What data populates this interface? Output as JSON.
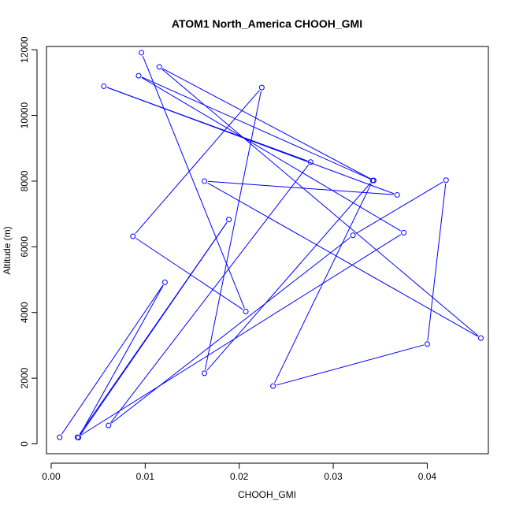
{
  "chart_data": {
    "type": "line",
    "title": "ATOM1 North_America CHOOH_GMI",
    "xlabel": "CHOOH_GMI",
    "ylabel": "Altitude (m)",
    "xlim": [
      -0.0005,
      0.0465
    ],
    "ylim": [
      -300,
      12100
    ],
    "x_ticks": [
      0.0,
      0.01,
      0.02,
      0.03,
      0.04
    ],
    "x_tick_labels": [
      "0.00",
      "0.01",
      "0.02",
      "0.03",
      "0.04"
    ],
    "y_ticks": [
      0,
      2000,
      4000,
      6000,
      8000,
      10000,
      12000
    ],
    "y_tick_labels": [
      "0",
      "2000",
      "4000",
      "6000",
      "8000",
      "10000",
      "12000"
    ],
    "grid": false,
    "legend": "none",
    "series_color": "#0000ff",
    "series": [
      {
        "x": [
          0.0009,
          0.0121,
          0.0029,
          0.0189,
          0.0028,
          0.0375,
          0.0093,
          0.0343,
          0.0115,
          0.0457,
          0.0163,
          0.0368,
          0.0056,
          0.0276,
          0.0061,
          0.0321,
          0.042,
          0.04,
          0.0236,
          0.0342,
          0.0163,
          0.0224,
          0.0087,
          0.0207,
          0.0096
        ],
        "y": [
          200,
          4920,
          190,
          6830,
          200,
          6430,
          11210,
          8020,
          11480,
          3220,
          8000,
          7580,
          10890,
          8580,
          560,
          6350,
          8030,
          3040,
          1760,
          8020,
          2150,
          10850,
          6320,
          4030,
          11910
        ]
      }
    ]
  }
}
